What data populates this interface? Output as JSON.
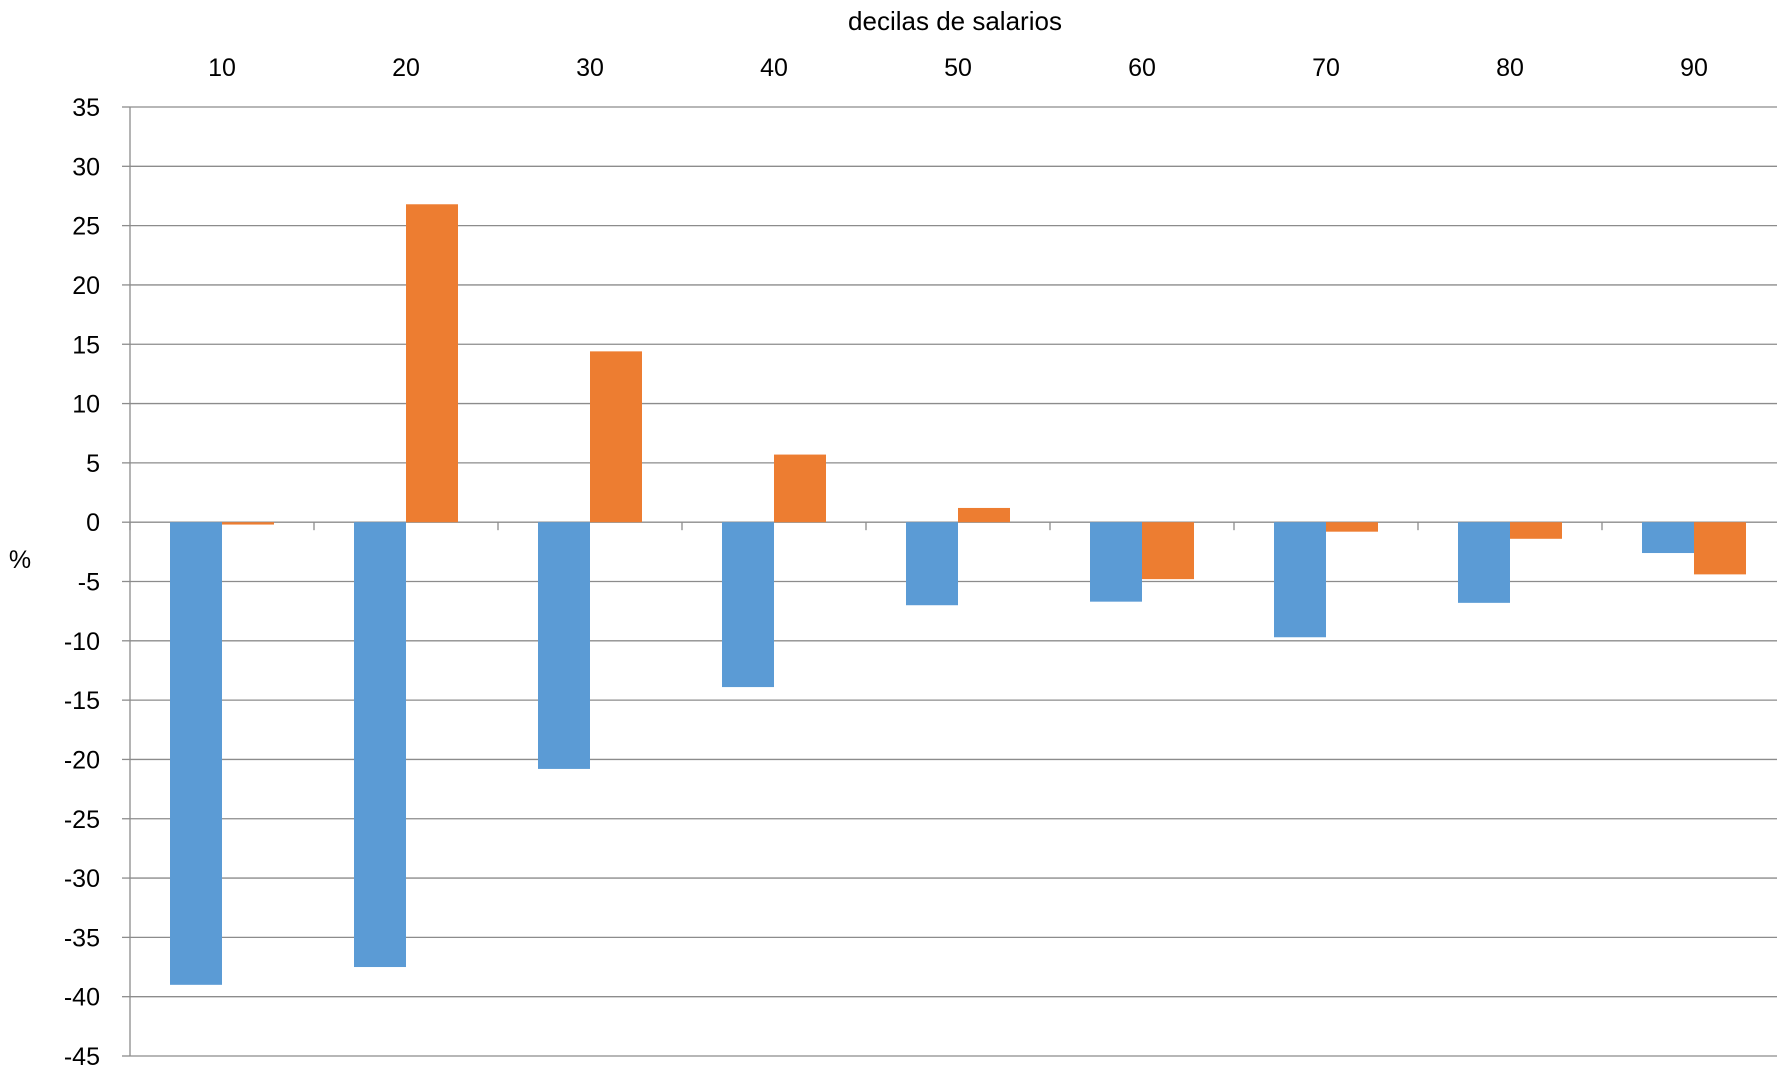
{
  "chart_data": {
    "type": "bar",
    "xlabel": "decilas de salarios",
    "ylabel": "%",
    "categories": [
      "10",
      "20",
      "30",
      "40",
      "50",
      "60",
      "70",
      "80",
      "90"
    ],
    "series": [
      {
        "color": "#5b9bd5",
        "values": [
          -39.0,
          -37.5,
          -20.8,
          -13.9,
          -7.0,
          -6.7,
          -9.7,
          -6.8,
          -2.6
        ]
      },
      {
        "color": "#ed7d31",
        "values": [
          -0.2,
          26.8,
          14.4,
          5.7,
          1.2,
          -4.8,
          -0.8,
          -1.4,
          -4.4
        ]
      }
    ],
    "ylim": [
      -45,
      35
    ],
    "ytick_step": 5,
    "yticks": [
      "35",
      "30",
      "25",
      "20",
      "15",
      "10",
      "5",
      "0",
      "-5",
      "-10",
      "-15",
      "-20",
      "-25",
      "-30",
      "-35",
      "-40",
      "-45"
    ],
    "grid": true,
    "xaxis_position": "top",
    "legend": "none"
  }
}
